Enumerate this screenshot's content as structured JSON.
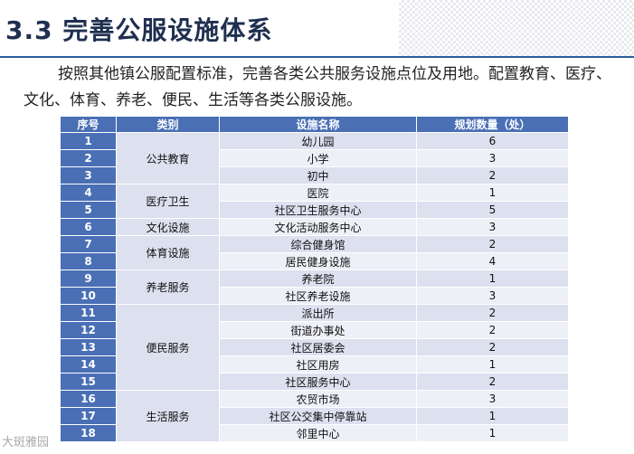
{
  "title": "3.3 完善公服设施体系",
  "paragraph": "按照其他镇公服配置标准，完善各类公共服务设施点位及用地。配置教育、医疗、文化、体育、养老、便民、生活等各类公服设施。",
  "table": {
    "headers": [
      "序号",
      "类别",
      "设施名称",
      "规划数量（处）"
    ],
    "categories": [
      "公共教育",
      "医疗卫生",
      "文化设施",
      "体育设施",
      "养老服务",
      "便民服务",
      "生活服务"
    ],
    "rows": [
      {
        "no": "1",
        "name": "幼儿园",
        "count": "6"
      },
      {
        "no": "2",
        "name": "小学",
        "count": "3"
      },
      {
        "no": "3",
        "name": "初中",
        "count": "2"
      },
      {
        "no": "4",
        "name": "医院",
        "count": "1"
      },
      {
        "no": "5",
        "name": "社区卫生服务中心",
        "count": "5"
      },
      {
        "no": "6",
        "name": "文化活动服务中心",
        "count": "3"
      },
      {
        "no": "7",
        "name": "综合健身馆",
        "count": "2"
      },
      {
        "no": "8",
        "name": "居民健身设施",
        "count": "4"
      },
      {
        "no": "9",
        "name": "养老院",
        "count": "1"
      },
      {
        "no": "10",
        "name": "社区养老设施",
        "count": "3"
      },
      {
        "no": "11",
        "name": "派出所",
        "count": "2"
      },
      {
        "no": "12",
        "name": "街道办事处",
        "count": "2"
      },
      {
        "no": "13",
        "name": "社区居委会",
        "count": "2"
      },
      {
        "no": "14",
        "name": "社区用房",
        "count": "1"
      },
      {
        "no": "15",
        "name": "社区服务中心",
        "count": "2"
      },
      {
        "no": "16",
        "name": "农贸市场",
        "count": "3"
      },
      {
        "no": "17",
        "name": "社区公交集中停靠站",
        "count": "1"
      },
      {
        "no": "18",
        "name": "邻里中心",
        "count": "1"
      }
    ]
  },
  "watermark": "大斑雅园"
}
